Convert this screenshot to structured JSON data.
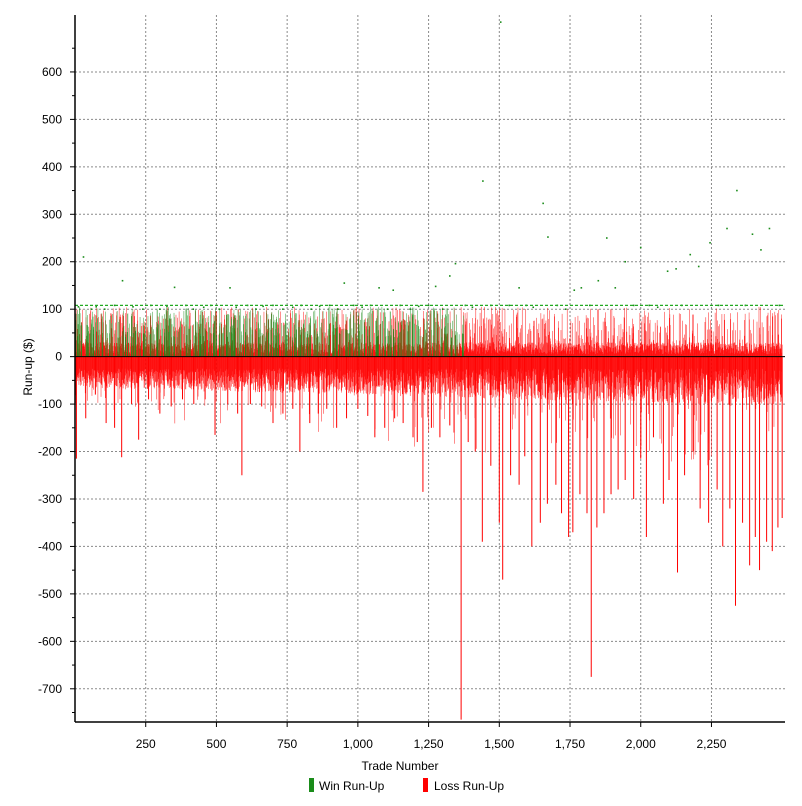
{
  "chart_data": {
    "type": "bar",
    "title": "",
    "xlabel": "Trade Number",
    "ylabel": "Run-up ($)",
    "xlim": [
      0,
      2510
    ],
    "ylim": [
      -770,
      720
    ],
    "x_ticks": [
      {
        "value": 250,
        "label": "250"
      },
      {
        "value": 500,
        "label": "500"
      },
      {
        "value": 750,
        "label": "750"
      },
      {
        "value": 1000,
        "label": "1,000"
      },
      {
        "value": 1250,
        "label": "1,250"
      },
      {
        "value": 1500,
        "label": "1,500"
      },
      {
        "value": 1750,
        "label": "1,750"
      },
      {
        "value": 2000,
        "label": "2,000"
      },
      {
        "value": 2250,
        "label": "2,250"
      }
    ],
    "y_ticks": [
      {
        "value": 600,
        "label": "600"
      },
      {
        "value": 500,
        "label": "500"
      },
      {
        "value": 400,
        "label": "400"
      },
      {
        "value": 300,
        "label": "300"
      },
      {
        "value": 200,
        "label": "200"
      },
      {
        "value": 100,
        "label": "100"
      },
      {
        "value": 0,
        "label": "0"
      },
      {
        "value": -100,
        "label": "-100"
      },
      {
        "value": -200,
        "label": "-200"
      },
      {
        "value": -300,
        "label": "-300"
      },
      {
        "value": -400,
        "label": "-400"
      },
      {
        "value": -500,
        "label": "-500"
      },
      {
        "value": -600,
        "label": "-600"
      },
      {
        "value": -700,
        "label": "-700"
      }
    ],
    "grid": true,
    "legend_position": "bottom-center",
    "reference_line": {
      "y": 108,
      "color": "#22aa22"
    },
    "series": [
      {
        "name": "Win Run-Up",
        "color": "#1a8c1a",
        "points": [
          [
            12,
            105
          ],
          [
            30,
            210
          ],
          [
            58,
            100
          ],
          [
            75,
            105
          ],
          [
            105,
            100
          ],
          [
            140,
            108
          ],
          [
            168,
            160
          ],
          [
            205,
            105
          ],
          [
            240,
            100
          ],
          [
            268,
            108
          ],
          [
            300,
            100
          ],
          [
            325,
            106
          ],
          [
            352,
            146
          ],
          [
            392,
            108
          ],
          [
            418,
            100
          ],
          [
            455,
            104
          ],
          [
            480,
            108
          ],
          [
            510,
            100
          ],
          [
            548,
            145
          ],
          [
            570,
            104
          ],
          [
            610,
            108
          ],
          [
            640,
            100
          ],
          [
            665,
            106
          ],
          [
            700,
            108
          ],
          [
            735,
            100
          ],
          [
            770,
            104
          ],
          [
            800,
            108
          ],
          [
            835,
            100
          ],
          [
            865,
            106
          ],
          [
            900,
            108
          ],
          [
            930,
            100
          ],
          [
            952,
            155
          ],
          [
            985,
            108
          ],
          [
            1015,
            104
          ],
          [
            1045,
            108
          ],
          [
            1075,
            145
          ],
          [
            1105,
            100
          ],
          [
            1125,
            140
          ],
          [
            1150,
            108
          ],
          [
            1185,
            100
          ],
          [
            1215,
            106
          ],
          [
            1250,
            108
          ],
          [
            1275,
            148
          ],
          [
            1300,
            100
          ],
          [
            1325,
            170
          ],
          [
            1345,
            196
          ],
          [
            1380,
            108
          ],
          [
            1405,
            104
          ],
          [
            1442,
            370
          ],
          [
            1470,
            108
          ],
          [
            1505,
            705
          ],
          [
            1535,
            108
          ],
          [
            1570,
            145
          ],
          [
            1595,
            108
          ],
          [
            1620,
            104
          ],
          [
            1655,
            323
          ],
          [
            1672,
            252
          ],
          [
            1705,
            108
          ],
          [
            1735,
            100
          ],
          [
            1765,
            140
          ],
          [
            1790,
            145
          ],
          [
            1820,
            108
          ],
          [
            1850,
            160
          ],
          [
            1880,
            250
          ],
          [
            1910,
            145
          ],
          [
            1945,
            200
          ],
          [
            1975,
            108
          ],
          [
            2000,
            230
          ],
          [
            2030,
            108
          ],
          [
            2060,
            104
          ],
          [
            2095,
            180
          ],
          [
            2125,
            185
          ],
          [
            2145,
            108
          ],
          [
            2175,
            215
          ],
          [
            2205,
            190
          ],
          [
            2245,
            240
          ],
          [
            2275,
            108
          ],
          [
            2305,
            270
          ],
          [
            2340,
            350
          ],
          [
            2370,
            108
          ],
          [
            2395,
            258
          ],
          [
            2425,
            225
          ],
          [
            2455,
            270
          ],
          [
            2490,
            108
          ]
        ]
      },
      {
        "name": "Loss Run-Up",
        "color": "#ff0000",
        "points": [
          [
            5,
            -215
          ],
          [
            38,
            -130
          ],
          [
            72,
            -80
          ],
          [
            110,
            -140
          ],
          [
            140,
            -150
          ],
          [
            165,
            -212
          ],
          [
            200,
            -100
          ],
          [
            225,
            -175
          ],
          [
            260,
            -90
          ],
          [
            300,
            -120
          ],
          [
            340,
            -105
          ],
          [
            380,
            -90
          ],
          [
            420,
            -100
          ],
          [
            460,
            -90
          ],
          [
            495,
            -165
          ],
          [
            540,
            -100
          ],
          [
            575,
            -120
          ],
          [
            590,
            -250
          ],
          [
            620,
            -100
          ],
          [
            660,
            -105
          ],
          [
            700,
            -140
          ],
          [
            735,
            -120
          ],
          [
            770,
            -110
          ],
          [
            795,
            -200
          ],
          [
            830,
            -140
          ],
          [
            860,
            -120
          ],
          [
            890,
            -110
          ],
          [
            925,
            -150
          ],
          [
            960,
            -130
          ],
          [
            1000,
            -110
          ],
          [
            1035,
            -125
          ],
          [
            1060,
            -170
          ],
          [
            1095,
            -150
          ],
          [
            1130,
            -130
          ],
          [
            1160,
            -140
          ],
          [
            1195,
            -170
          ],
          [
            1210,
            -180
          ],
          [
            1230,
            -285
          ],
          [
            1260,
            -150
          ],
          [
            1290,
            -170
          ],
          [
            1325,
            -145
          ],
          [
            1340,
            -160
          ],
          [
            1365,
            -765
          ],
          [
            1390,
            -180
          ],
          [
            1415,
            -200
          ],
          [
            1440,
            -390
          ],
          [
            1470,
            -230
          ],
          [
            1500,
            -350
          ],
          [
            1512,
            -470
          ],
          [
            1540,
            -250
          ],
          [
            1570,
            -270
          ],
          [
            1590,
            -210
          ],
          [
            1615,
            -400
          ],
          [
            1645,
            -350
          ],
          [
            1670,
            -310
          ],
          [
            1700,
            -270
          ],
          [
            1720,
            -330
          ],
          [
            1745,
            -380
          ],
          [
            1760,
            -370
          ],
          [
            1785,
            -290
          ],
          [
            1810,
            -330
          ],
          [
            1825,
            -675
          ],
          [
            1845,
            -360
          ],
          [
            1870,
            -330
          ],
          [
            1895,
            -290
          ],
          [
            1920,
            -280
          ],
          [
            1945,
            -260
          ],
          [
            1975,
            -300
          ],
          [
            2000,
            -215
          ],
          [
            2020,
            -380
          ],
          [
            2045,
            -170
          ],
          [
            2080,
            -310
          ],
          [
            2100,
            -260
          ],
          [
            2130,
            -455
          ],
          [
            2155,
            -250
          ],
          [
            2185,
            -200
          ],
          [
            2210,
            -320
          ],
          [
            2240,
            -350
          ],
          [
            2270,
            -280
          ],
          [
            2290,
            -400
          ],
          [
            2315,
            -320
          ],
          [
            2335,
            -525
          ],
          [
            2360,
            -350
          ],
          [
            2385,
            -440
          ],
          [
            2405,
            -380
          ],
          [
            2420,
            -450
          ],
          [
            2445,
            -390
          ],
          [
            2465,
            -410
          ],
          [
            2485,
            -360
          ],
          [
            2500,
            -340
          ]
        ]
      }
    ]
  }
}
